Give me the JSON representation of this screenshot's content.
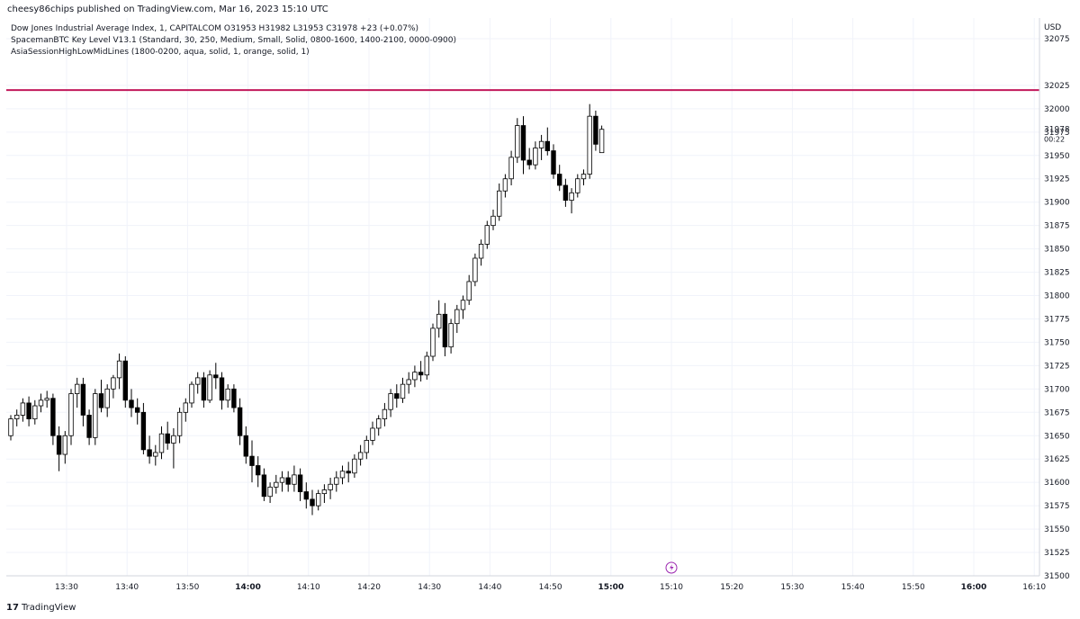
{
  "header": {
    "published_text": "cheesy86chips published on TradingView.com, Mar 16, 2023 15:10 UTC"
  },
  "legend": {
    "line1": "Dow Jones Industrial Average Index, 1, CAPITALCOM  O31953  H31982  L31953  C31978  +23 (+0.07%)",
    "line2": "SpacemanBTC Key Level V13.1 (Standard, 30, 250, Medium, Small, Solid, 0800-1600, 1400-2100, 0000-0900)",
    "line3": "AsiaSessionHighLowMidLines (1800-0200, aqua, solid, 1, orange, solid, 1)"
  },
  "price_axis": {
    "currency": "USD",
    "last_price": "31978",
    "countdown": "00:22"
  },
  "footer": {
    "logo": "17",
    "brand": "TradingView"
  },
  "colors": {
    "key_level": "#c2185b",
    "candle_up": "#ffffff",
    "candle_down": "#000000",
    "outline": "#000000",
    "event_icon": "#9c27b0"
  },
  "icons": {
    "event": "lightning-icon"
  },
  "chart_data": {
    "type": "candlestick",
    "title": "Dow Jones Industrial Average Index, 1, CAPITALCOM",
    "timeframe": "1 minute",
    "y_ticks": [
      31500,
      31525,
      31550,
      31575,
      31600,
      31625,
      31650,
      31675,
      31700,
      31725,
      31750,
      31775,
      31800,
      31825,
      31850,
      31875,
      31900,
      31925,
      31950,
      31975,
      32000,
      32025,
      32075
    ],
    "x_ticks": [
      {
        "label": "13:30",
        "bold": false
      },
      {
        "label": "13:40",
        "bold": false
      },
      {
        "label": "13:50",
        "bold": false
      },
      {
        "label": "14:00",
        "bold": true
      },
      {
        "label": "14:10",
        "bold": false
      },
      {
        "label": "14:20",
        "bold": false
      },
      {
        "label": "14:30",
        "bold": false
      },
      {
        "label": "14:40",
        "bold": false
      },
      {
        "label": "14:50",
        "bold": false
      },
      {
        "label": "15:00",
        "bold": true
      },
      {
        "label": "15:10",
        "bold": false
      },
      {
        "label": "15:20",
        "bold": false
      },
      {
        "label": "15:30",
        "bold": false
      },
      {
        "label": "15:40",
        "bold": false
      },
      {
        "label": "15:50",
        "bold": false
      },
      {
        "label": "16:00",
        "bold": true
      },
      {
        "label": "16:10",
        "bold": false
      }
    ],
    "key_level": 32020,
    "last_close": 31978,
    "ylim": [
      31500,
      32080
    ],
    "grid": true,
    "candles": [
      [
        31650,
        31672,
        31645,
        31668
      ],
      [
        31668,
        31678,
        31660,
        31672
      ],
      [
        31672,
        31690,
        31665,
        31685
      ],
      [
        31685,
        31692,
        31660,
        31668
      ],
      [
        31668,
        31688,
        31662,
        31682
      ],
      [
        31682,
        31695,
        31675,
        31688
      ],
      [
        31688,
        31698,
        31680,
        31690
      ],
      [
        31690,
        31695,
        31640,
        31650
      ],
      [
        31650,
        31660,
        31612,
        31630
      ],
      [
        31630,
        31655,
        31620,
        31650
      ],
      [
        31650,
        31700,
        31640,
        31695
      ],
      [
        31695,
        31712,
        31680,
        31705
      ],
      [
        31705,
        31712,
        31660,
        31672
      ],
      [
        31672,
        31678,
        31640,
        31648
      ],
      [
        31648,
        31700,
        31640,
        31695
      ],
      [
        31695,
        31710,
        31675,
        31680
      ],
      [
        31680,
        31705,
        31670,
        31700
      ],
      [
        31700,
        31715,
        31690,
        31712
      ],
      [
        31712,
        31738,
        31700,
        31730
      ],
      [
        31730,
        31735,
        31680,
        31688
      ],
      [
        31688,
        31700,
        31670,
        31680
      ],
      [
        31680,
        31690,
        31662,
        31675
      ],
      [
        31675,
        31685,
        31630,
        31635
      ],
      [
        31635,
        31650,
        31620,
        31628
      ],
      [
        31628,
        31640,
        31618,
        31632
      ],
      [
        31632,
        31660,
        31625,
        31652
      ],
      [
        31652,
        31665,
        31635,
        31642
      ],
      [
        31642,
        31658,
        31615,
        31650
      ],
      [
        31650,
        31680,
        31642,
        31675
      ],
      [
        31675,
        31690,
        31665,
        31685
      ],
      [
        31685,
        31708,
        31680,
        31705
      ],
      [
        31705,
        31718,
        31695,
        31712
      ],
      [
        31712,
        31718,
        31680,
        31688
      ],
      [
        31688,
        31720,
        31685,
        31715
      ],
      [
        31715,
        31728,
        31700,
        31712
      ],
      [
        31712,
        31718,
        31678,
        31688
      ],
      [
        31688,
        31705,
        31680,
        31700
      ],
      [
        31700,
        31705,
        31675,
        31680
      ],
      [
        31680,
        31690,
        31640,
        31650
      ],
      [
        31650,
        31660,
        31620,
        31628
      ],
      [
        31628,
        31645,
        31600,
        31618
      ],
      [
        31618,
        31628,
        31595,
        31608
      ],
      [
        31608,
        31615,
        31580,
        31585
      ],
      [
        31585,
        31600,
        31578,
        31595
      ],
      [
        31595,
        31608,
        31588,
        31600
      ],
      [
        31600,
        31612,
        31590,
        31605
      ],
      [
        31605,
        31612,
        31590,
        31598
      ],
      [
        31598,
        31618,
        31590,
        31608
      ],
      [
        31608,
        31615,
        31580,
        31590
      ],
      [
        31590,
        31600,
        31572,
        31582
      ],
      [
        31582,
        31592,
        31565,
        31575
      ],
      [
        31575,
        31592,
        31570,
        31588
      ],
      [
        31588,
        31598,
        31578,
        31592
      ],
      [
        31592,
        31605,
        31582,
        31598
      ],
      [
        31598,
        31612,
        31590,
        31605
      ],
      [
        31605,
        31618,
        31598,
        31612
      ],
      [
        31612,
        31622,
        31600,
        31610
      ],
      [
        31610,
        31630,
        31605,
        31625
      ],
      [
        31625,
        31640,
        31618,
        31632
      ],
      [
        31632,
        31650,
        31625,
        31645
      ],
      [
        31645,
        31665,
        31640,
        31658
      ],
      [
        31658,
        31672,
        31650,
        31668
      ],
      [
        31668,
        31685,
        31660,
        31678
      ],
      [
        31678,
        31700,
        31670,
        31695
      ],
      [
        31695,
        31705,
        31680,
        31690
      ],
      [
        31690,
        31712,
        31685,
        31705
      ],
      [
        31705,
        31718,
        31695,
        31710
      ],
      [
        31710,
        31725,
        31702,
        31718
      ],
      [
        31718,
        31730,
        31708,
        31715
      ],
      [
        31715,
        31740,
        31710,
        31735
      ],
      [
        31735,
        31770,
        31730,
        31765
      ],
      [
        31765,
        31795,
        31755,
        31780
      ],
      [
        31780,
        31792,
        31735,
        31745
      ],
      [
        31745,
        31775,
        31738,
        31770
      ],
      [
        31770,
        31790,
        31760,
        31785
      ],
      [
        31785,
        31800,
        31775,
        31795
      ],
      [
        31795,
        31822,
        31790,
        31815
      ],
      [
        31815,
        31845,
        31810,
        31840
      ],
      [
        31840,
        31860,
        31832,
        31855
      ],
      [
        31855,
        31880,
        31850,
        31875
      ],
      [
        31875,
        31892,
        31870,
        31885
      ],
      [
        31885,
        31920,
        31880,
        31912
      ],
      [
        31912,
        31930,
        31905,
        31925
      ],
      [
        31925,
        31955,
        31918,
        31948
      ],
      [
        31948,
        31990,
        31942,
        31982
      ],
      [
        31982,
        31992,
        31930,
        31945
      ],
      [
        31945,
        31958,
        31935,
        31940
      ],
      [
        31940,
        31965,
        31935,
        31958
      ],
      [
        31958,
        31972,
        31945,
        31965
      ],
      [
        31965,
        31980,
        31950,
        31955
      ],
      [
        31955,
        31962,
        31925,
        31930
      ],
      [
        31930,
        31940,
        31912,
        31918
      ],
      [
        31918,
        31925,
        31895,
        31902
      ],
      [
        31902,
        31915,
        31888,
        31910
      ],
      [
        31910,
        31930,
        31905,
        31925
      ],
      [
        31925,
        31935,
        31918,
        31930
      ],
      [
        31930,
        32005,
        31925,
        31992
      ],
      [
        31992,
        31998,
        31955,
        31962
      ],
      [
        31953,
        31982,
        31953,
        31978
      ]
    ]
  }
}
